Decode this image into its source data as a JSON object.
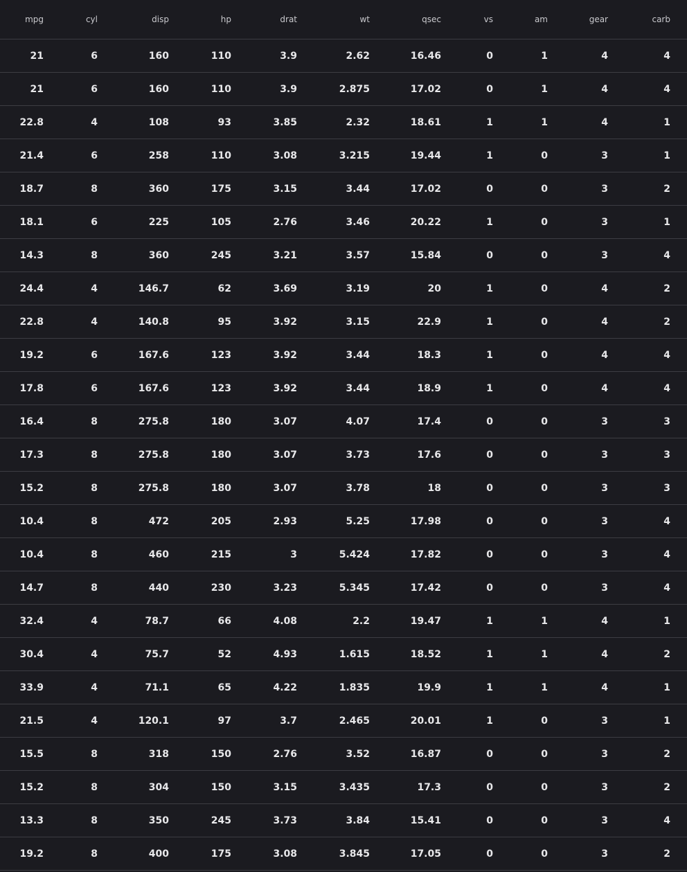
{
  "table": {
    "columns": [
      "mpg",
      "cyl",
      "disp",
      "hp",
      "drat",
      "wt",
      "qsec",
      "vs",
      "am",
      "gear",
      "carb"
    ],
    "rows": [
      [
        "21",
        "6",
        "160",
        "110",
        "3.9",
        "2.62",
        "16.46",
        "0",
        "1",
        "4",
        "4"
      ],
      [
        "21",
        "6",
        "160",
        "110",
        "3.9",
        "2.875",
        "17.02",
        "0",
        "1",
        "4",
        "4"
      ],
      [
        "22.8",
        "4",
        "108",
        "93",
        "3.85",
        "2.32",
        "18.61",
        "1",
        "1",
        "4",
        "1"
      ],
      [
        "21.4",
        "6",
        "258",
        "110",
        "3.08",
        "3.215",
        "19.44",
        "1",
        "0",
        "3",
        "1"
      ],
      [
        "18.7",
        "8",
        "360",
        "175",
        "3.15",
        "3.44",
        "17.02",
        "0",
        "0",
        "3",
        "2"
      ],
      [
        "18.1",
        "6",
        "225",
        "105",
        "2.76",
        "3.46",
        "20.22",
        "1",
        "0",
        "3",
        "1"
      ],
      [
        "14.3",
        "8",
        "360",
        "245",
        "3.21",
        "3.57",
        "15.84",
        "0",
        "0",
        "3",
        "4"
      ],
      [
        "24.4",
        "4",
        "146.7",
        "62",
        "3.69",
        "3.19",
        "20",
        "1",
        "0",
        "4",
        "2"
      ],
      [
        "22.8",
        "4",
        "140.8",
        "95",
        "3.92",
        "3.15",
        "22.9",
        "1",
        "0",
        "4",
        "2"
      ],
      [
        "19.2",
        "6",
        "167.6",
        "123",
        "3.92",
        "3.44",
        "18.3",
        "1",
        "0",
        "4",
        "4"
      ],
      [
        "17.8",
        "6",
        "167.6",
        "123",
        "3.92",
        "3.44",
        "18.9",
        "1",
        "0",
        "4",
        "4"
      ],
      [
        "16.4",
        "8",
        "275.8",
        "180",
        "3.07",
        "4.07",
        "17.4",
        "0",
        "0",
        "3",
        "3"
      ],
      [
        "17.3",
        "8",
        "275.8",
        "180",
        "3.07",
        "3.73",
        "17.6",
        "0",
        "0",
        "3",
        "3"
      ],
      [
        "15.2",
        "8",
        "275.8",
        "180",
        "3.07",
        "3.78",
        "18",
        "0",
        "0",
        "3",
        "3"
      ],
      [
        "10.4",
        "8",
        "472",
        "205",
        "2.93",
        "5.25",
        "17.98",
        "0",
        "0",
        "3",
        "4"
      ],
      [
        "10.4",
        "8",
        "460",
        "215",
        "3",
        "5.424",
        "17.82",
        "0",
        "0",
        "3",
        "4"
      ],
      [
        "14.7",
        "8",
        "440",
        "230",
        "3.23",
        "5.345",
        "17.42",
        "0",
        "0",
        "3",
        "4"
      ],
      [
        "32.4",
        "4",
        "78.7",
        "66",
        "4.08",
        "2.2",
        "19.47",
        "1",
        "1",
        "4",
        "1"
      ],
      [
        "30.4",
        "4",
        "75.7",
        "52",
        "4.93",
        "1.615",
        "18.52",
        "1",
        "1",
        "4",
        "2"
      ],
      [
        "33.9",
        "4",
        "71.1",
        "65",
        "4.22",
        "1.835",
        "19.9",
        "1",
        "1",
        "4",
        "1"
      ],
      [
        "21.5",
        "4",
        "120.1",
        "97",
        "3.7",
        "2.465",
        "20.01",
        "1",
        "0",
        "3",
        "1"
      ],
      [
        "15.5",
        "8",
        "318",
        "150",
        "2.76",
        "3.52",
        "16.87",
        "0",
        "0",
        "3",
        "2"
      ],
      [
        "15.2",
        "8",
        "304",
        "150",
        "3.15",
        "3.435",
        "17.3",
        "0",
        "0",
        "3",
        "2"
      ],
      [
        "13.3",
        "8",
        "350",
        "245",
        "3.73",
        "3.84",
        "15.41",
        "0",
        "0",
        "3",
        "4"
      ],
      [
        "19.2",
        "8",
        "400",
        "175",
        "3.08",
        "3.845",
        "17.05",
        "0",
        "0",
        "3",
        "2"
      ]
    ]
  },
  "colors": {
    "background": "#1b1b20",
    "divider": "#3d3d43",
    "header_text": "#c9c9cd",
    "cell_text": "#e8e8ea"
  }
}
